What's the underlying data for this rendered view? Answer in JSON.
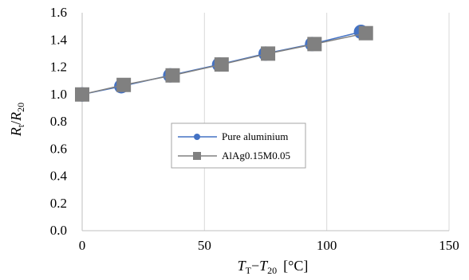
{
  "chart_data": {
    "type": "line",
    "x_axis": {
      "min": 0,
      "max": 150,
      "ticks": [
        0,
        50,
        100,
        150
      ],
      "tick_labels": [
        "0",
        "50",
        "100",
        "150"
      ],
      "label": {
        "main": "T",
        "main_sub": "T",
        "minus": "−",
        "second": "T",
        "second_sub": "20",
        "unit": "[°C]"
      }
    },
    "y_axis": {
      "min": 0,
      "max": 1.6,
      "ticks": [
        0,
        0.2,
        0.4,
        0.6,
        0.8,
        1.0,
        1.2,
        1.4,
        1.6
      ],
      "tick_labels": [
        "0.0",
        "0.2",
        "0.4",
        "0.6",
        "0.8",
        "1.0",
        "1.2",
        "1.4",
        "1.6"
      ],
      "label": {
        "num": "R",
        "num_sub": "t",
        "slash": "/",
        "den": "R",
        "den_sub": "20"
      }
    },
    "grid": {
      "vertical": true,
      "horizontal": false,
      "color": "#d9d9d9"
    },
    "legend": {
      "placement": "center"
    },
    "series": [
      {
        "name": "Pure aluminium",
        "marker": "circle",
        "color": "#4472c4",
        "x": [
          0,
          16,
          36,
          56,
          75,
          94,
          114
        ],
        "y": [
          1.0,
          1.06,
          1.14,
          1.22,
          1.3,
          1.37,
          1.46
        ]
      },
      {
        "name": "AlAg0.15M0.05",
        "marker": "square",
        "color": "#808080",
        "x": [
          0,
          17,
          37,
          57,
          76,
          95,
          116
        ],
        "y": [
          1.0,
          1.07,
          1.14,
          1.22,
          1.3,
          1.37,
          1.45
        ]
      }
    ]
  }
}
